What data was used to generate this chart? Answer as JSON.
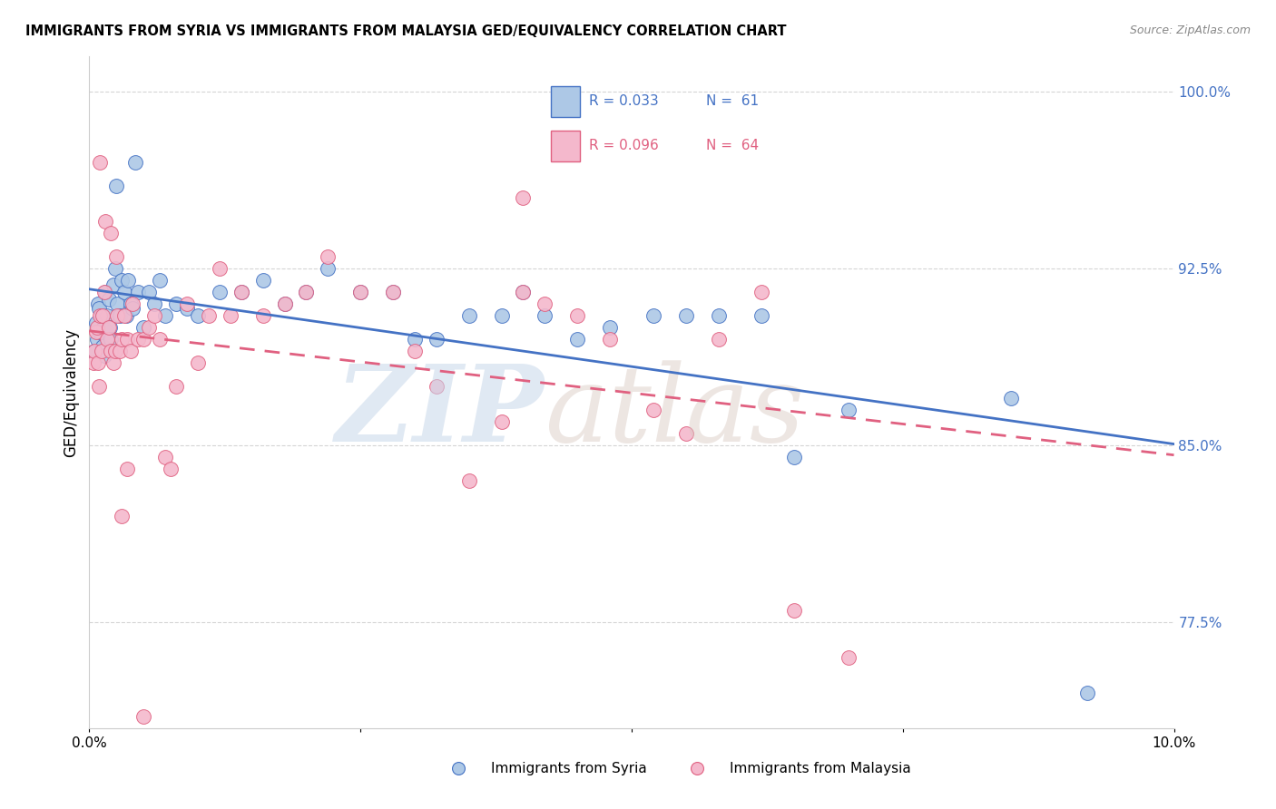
{
  "title": "IMMIGRANTS FROM SYRIA VS IMMIGRANTS FROM MALAYSIA GED/EQUIVALENCY CORRELATION CHART",
  "source": "Source: ZipAtlas.com",
  "ylabel": "GED/Equivalency",
  "color_syria": "#adc8e6",
  "color_malaysia": "#f4b8cc",
  "color_syria_line": "#4472c4",
  "color_malaysia_line": "#e06080",
  "xlim": [
    0.0,
    10.0
  ],
  "ylim": [
    73.0,
    101.5
  ],
  "ytick_positions": [
    77.5,
    85.0,
    92.5,
    100.0
  ],
  "r_syria": 0.033,
  "n_syria": 61,
  "r_malaysia": 0.096,
  "n_malaysia": 64,
  "syria_x": [
    0.05,
    0.06,
    0.07,
    0.08,
    0.09,
    0.1,
    0.11,
    0.12,
    0.13,
    0.14,
    0.15,
    0.16,
    0.17,
    0.18,
    0.19,
    0.2,
    0.22,
    0.24,
    0.26,
    0.28,
    0.3,
    0.32,
    0.34,
    0.36,
    0.38,
    0.4,
    0.45,
    0.5,
    0.55,
    0.6,
    0.65,
    0.7,
    0.8,
    0.9,
    1.0,
    1.2,
    1.4,
    1.6,
    1.8,
    2.0,
    2.2,
    2.5,
    2.8,
    3.0,
    3.2,
    3.5,
    3.8,
    4.0,
    4.2,
    4.5,
    4.8,
    5.2,
    5.5,
    5.8,
    6.2,
    6.5,
    7.0,
    8.5,
    9.2,
    0.42,
    0.25
  ],
  "syria_y": [
    89.0,
    90.2,
    89.5,
    91.0,
    90.8,
    89.8,
    90.5,
    89.2,
    90.0,
    88.8,
    91.5,
    90.5,
    89.8,
    91.2,
    90.0,
    89.5,
    91.8,
    92.5,
    91.0,
    90.5,
    92.0,
    91.5,
    90.5,
    92.0,
    91.0,
    90.8,
    91.5,
    90.0,
    91.5,
    91.0,
    92.0,
    90.5,
    91.0,
    90.8,
    90.5,
    91.5,
    91.5,
    92.0,
    91.0,
    91.5,
    92.5,
    91.5,
    91.5,
    89.5,
    89.5,
    90.5,
    90.5,
    91.5,
    90.5,
    89.5,
    90.0,
    90.5,
    90.5,
    90.5,
    90.5,
    84.5,
    86.5,
    87.0,
    74.5,
    97.0,
    96.0
  ],
  "malaysia_x": [
    0.04,
    0.05,
    0.06,
    0.07,
    0.08,
    0.09,
    0.1,
    0.11,
    0.12,
    0.14,
    0.16,
    0.18,
    0.2,
    0.22,
    0.24,
    0.26,
    0.28,
    0.3,
    0.32,
    0.35,
    0.38,
    0.4,
    0.45,
    0.5,
    0.55,
    0.6,
    0.65,
    0.7,
    0.75,
    0.8,
    0.9,
    1.0,
    1.1,
    1.2,
    1.3,
    1.4,
    1.6,
    1.8,
    2.0,
    2.2,
    2.5,
    2.8,
    3.0,
    3.2,
    3.5,
    3.8,
    4.0,
    4.2,
    4.5,
    4.8,
    5.2,
    5.5,
    5.8,
    6.2,
    6.5,
    7.0,
    0.1,
    0.15,
    0.2,
    0.25,
    0.3,
    0.35,
    4.0,
    0.5
  ],
  "malaysia_y": [
    88.5,
    89.0,
    89.8,
    90.0,
    88.5,
    87.5,
    90.5,
    89.0,
    90.5,
    91.5,
    89.5,
    90.0,
    89.0,
    88.5,
    89.0,
    90.5,
    89.0,
    89.5,
    90.5,
    89.5,
    89.0,
    91.0,
    89.5,
    89.5,
    90.0,
    90.5,
    89.5,
    84.5,
    84.0,
    87.5,
    91.0,
    88.5,
    90.5,
    92.5,
    90.5,
    91.5,
    90.5,
    91.0,
    91.5,
    93.0,
    91.5,
    91.5,
    89.0,
    87.5,
    83.5,
    86.0,
    91.5,
    91.0,
    90.5,
    89.5,
    86.5,
    85.5,
    89.5,
    91.5,
    78.0,
    76.0,
    97.0,
    94.5,
    94.0,
    93.0,
    82.0,
    84.0,
    95.5,
    73.5
  ]
}
